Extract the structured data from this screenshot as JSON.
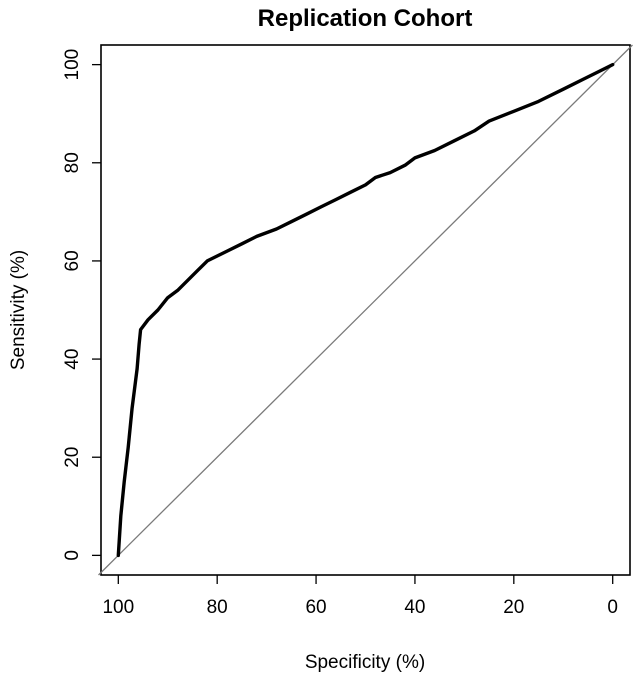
{
  "chart_data": {
    "type": "line",
    "title": "Replication Cohort",
    "xlabel": "Specificity (%)",
    "ylabel": "Sensitivity (%)",
    "xlim": [
      103.5,
      -3.5
    ],
    "ylim": [
      -4,
      104
    ],
    "x_reversed": true,
    "x_ticks": [
      100,
      80,
      60,
      40,
      20,
      0
    ],
    "y_ticks": [
      0,
      20,
      40,
      60,
      80,
      100
    ],
    "x_tick_labels": [
      "100",
      "80",
      "60",
      "40",
      "20",
      "0"
    ],
    "y_tick_labels": [
      "0",
      "20",
      "40",
      "60",
      "80",
      "100"
    ],
    "grid": false,
    "legend": "none",
    "reference_line": {
      "from": [
        100,
        0
      ],
      "to": [
        0,
        100
      ],
      "color": "#7a7a7a"
    },
    "series": [
      {
        "color": "#000000",
        "points": [
          [
            100,
            0
          ],
          [
            99.5,
            8
          ],
          [
            98.8,
            15
          ],
          [
            98,
            22
          ],
          [
            97.2,
            30
          ],
          [
            96.2,
            38
          ],
          [
            95.8,
            43
          ],
          [
            95.5,
            46
          ],
          [
            94,
            48
          ],
          [
            92,
            50
          ],
          [
            90,
            52.5
          ],
          [
            88,
            54
          ],
          [
            86,
            56
          ],
          [
            84,
            58
          ],
          [
            82,
            60
          ],
          [
            80,
            61
          ],
          [
            78,
            62
          ],
          [
            75,
            63.5
          ],
          [
            72,
            65
          ],
          [
            68,
            66.5
          ],
          [
            65,
            68
          ],
          [
            62,
            69.5
          ],
          [
            59,
            71
          ],
          [
            56,
            72.5
          ],
          [
            53,
            74
          ],
          [
            50,
            75.5
          ],
          [
            48,
            77
          ],
          [
            45,
            78
          ],
          [
            42,
            79.5
          ],
          [
            40,
            81
          ],
          [
            36,
            82.5
          ],
          [
            32,
            84.5
          ],
          [
            28,
            86.5
          ],
          [
            25,
            88.5
          ],
          [
            20,
            90.5
          ],
          [
            15,
            92.5
          ],
          [
            10,
            95
          ],
          [
            6,
            97
          ],
          [
            3,
            98.5
          ],
          [
            0,
            100
          ]
        ]
      }
    ]
  }
}
